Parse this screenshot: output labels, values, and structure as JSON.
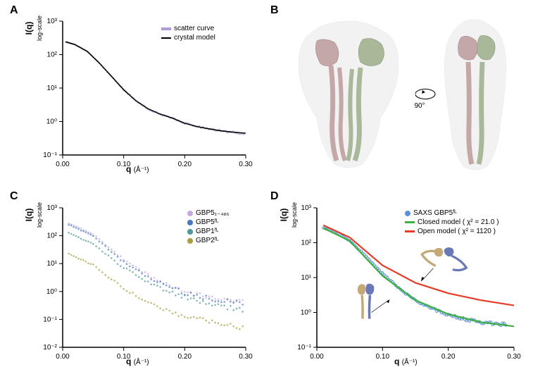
{
  "labels": {
    "A": "A",
    "B": "B",
    "C": "C",
    "D": "D"
  },
  "panelA": {
    "type": "line-scatter",
    "xlabel": "q",
    "xunit": "(Å⁻¹)",
    "ylabel": "I(q)",
    "ysub": "log-scale",
    "xlim": [
      0.0,
      0.3
    ],
    "xticks": [
      0.0,
      0.1,
      0.2,
      0.3
    ],
    "ylim": [
      -1,
      3
    ],
    "yticks": [
      "10⁻¹",
      "10⁰",
      "10¹",
      "10²",
      "10³"
    ],
    "legend": [
      {
        "label": "scatter curve",
        "color": "#b19cd9",
        "style": "scatter"
      },
      {
        "label": "crystal model",
        "color": "#000000",
        "style": "line"
      }
    ],
    "scatter_color": "#b19cd9",
    "line_color": "#000000",
    "data": [
      {
        "q": 0.005,
        "y": 2.38
      },
      {
        "q": 0.02,
        "y": 2.3
      },
      {
        "q": 0.04,
        "y": 2.1
      },
      {
        "q": 0.06,
        "y": 1.75
      },
      {
        "q": 0.08,
        "y": 1.35
      },
      {
        "q": 0.1,
        "y": 0.95
      },
      {
        "q": 0.12,
        "y": 0.62
      },
      {
        "q": 0.14,
        "y": 0.38
      },
      {
        "q": 0.16,
        "y": 0.22
      },
      {
        "q": 0.18,
        "y": 0.1
      },
      {
        "q": 0.2,
        "y": -0.05
      },
      {
        "q": 0.22,
        "y": -0.15
      },
      {
        "q": 0.24,
        "y": -0.22
      },
      {
        "q": 0.26,
        "y": -0.28
      },
      {
        "q": 0.28,
        "y": -0.32
      },
      {
        "q": 0.3,
        "y": -0.35
      }
    ],
    "background_color": "#ffffff"
  },
  "panelB": {
    "rotation_label": "90°",
    "chain_colors": [
      "#c4a8a8",
      "#a8b898"
    ],
    "envelope_color": "#e8e8e8"
  },
  "panelC": {
    "type": "multi-scatter",
    "xlabel": "q",
    "xunit": "(Å⁻¹)",
    "ylabel": "I(q)",
    "ysub": "log-scale",
    "xlim": [
      0.0,
      0.3
    ],
    "xticks": [
      0.0,
      0.1,
      0.2,
      0.3
    ],
    "ylim": [
      -2,
      3
    ],
    "yticks": [
      "10⁻²",
      "10⁻¹",
      "10⁰",
      "10¹",
      "10²",
      "10³"
    ],
    "legend": [
      {
        "label": "GBP5₁₋₄₈₆",
        "color": "#c8a8e0"
      },
      {
        "label": "GBP5ᶠᴸ",
        "color": "#4878c0"
      },
      {
        "label": "GBP1ᶠᴸ",
        "color": "#509898"
      },
      {
        "label": "GBP2ᶠᴸ",
        "color": "#a8a040"
      }
    ],
    "curves": {
      "GBP5_1_486": {
        "color": "#c8a8e0",
        "data": [
          {
            "q": 0.01,
            "y": 2.45
          },
          {
            "q": 0.05,
            "y": 2.05
          },
          {
            "q": 0.1,
            "y": 1.15
          },
          {
            "q": 0.15,
            "y": 0.45
          },
          {
            "q": 0.2,
            "y": 0.0
          },
          {
            "q": 0.25,
            "y": -0.25
          },
          {
            "q": 0.3,
            "y": -0.4
          }
        ]
      },
      "GBP5_FL": {
        "color": "#4878c0",
        "data": [
          {
            "q": 0.01,
            "y": 2.4
          },
          {
            "q": 0.05,
            "y": 2.0
          },
          {
            "q": 0.1,
            "y": 1.05
          },
          {
            "q": 0.15,
            "y": 0.4
          },
          {
            "q": 0.2,
            "y": -0.05
          },
          {
            "q": 0.25,
            "y": -0.3
          },
          {
            "q": 0.3,
            "y": -0.45
          }
        ]
      },
      "GBP1_FL": {
        "color": "#509898",
        "data": [
          {
            "q": 0.01,
            "y": 2.1
          },
          {
            "q": 0.05,
            "y": 1.7
          },
          {
            "q": 0.1,
            "y": 0.85
          },
          {
            "q": 0.15,
            "y": 0.2
          },
          {
            "q": 0.2,
            "y": -0.2
          },
          {
            "q": 0.25,
            "y": -0.5
          },
          {
            "q": 0.3,
            "y": -0.65
          }
        ]
      },
      "GBP2_FL": {
        "color": "#a8a040",
        "data": [
          {
            "q": 0.01,
            "y": 1.35
          },
          {
            "q": 0.05,
            "y": 0.95
          },
          {
            "q": 0.1,
            "y": 0.1
          },
          {
            "q": 0.15,
            "y": -0.5
          },
          {
            "q": 0.2,
            "y": -0.9
          },
          {
            "q": 0.25,
            "y": -1.1
          },
          {
            "q": 0.3,
            "y": -1.3
          }
        ]
      }
    }
  },
  "panelD": {
    "type": "line-scatter-compare",
    "xlabel": "q",
    "xunit": "(Å⁻¹)",
    "ylabel": "I(q)",
    "ysub": "log-scale",
    "xlim": [
      0.0,
      0.3
    ],
    "xticks": [
      0.0,
      0.1,
      0.2,
      0.3
    ],
    "ylim": [
      -1,
      3
    ],
    "yticks": [
      "10⁻¹",
      "10⁰",
      "10¹",
      "10²",
      "10³"
    ],
    "legend": [
      {
        "label": "SAXS GBP5ᶠᴸ",
        "color": "#5b8fd6",
        "style": "dot"
      },
      {
        "label": "Closed model ( χ² = 21.0 )",
        "color": "#3cb043",
        "style": "line"
      },
      {
        "label": "Open model ( χ² = 1120 )",
        "color": "#e63c28",
        "style": "line"
      }
    ],
    "scatter_color": "#5b8fd6",
    "closed_color": "#3cb043",
    "open_color": "#e63c28",
    "scatter_data": [
      {
        "q": 0.01,
        "y": 2.42
      },
      {
        "q": 0.03,
        "y": 2.3
      },
      {
        "q": 0.05,
        "y": 2.05
      },
      {
        "q": 0.07,
        "y": 1.7
      },
      {
        "q": 0.09,
        "y": 1.3
      },
      {
        "q": 0.11,
        "y": 0.95
      },
      {
        "q": 0.13,
        "y": 0.6
      },
      {
        "q": 0.15,
        "y": 0.35
      },
      {
        "q": 0.17,
        "y": 0.15
      },
      {
        "q": 0.19,
        "y": 0.0
      },
      {
        "q": 0.21,
        "y": -0.12
      },
      {
        "q": 0.23,
        "y": -0.22
      },
      {
        "q": 0.25,
        "y": -0.28
      },
      {
        "q": 0.27,
        "y": -0.32
      },
      {
        "q": 0.29,
        "y": -0.36
      }
    ],
    "closed_data": [
      {
        "q": 0.01,
        "y": 2.42
      },
      {
        "q": 0.05,
        "y": 2.05
      },
      {
        "q": 0.1,
        "y": 1.05
      },
      {
        "q": 0.15,
        "y": 0.35
      },
      {
        "q": 0.2,
        "y": -0.05
      },
      {
        "q": 0.25,
        "y": -0.28
      },
      {
        "q": 0.3,
        "y": -0.4
      }
    ],
    "open_data": [
      {
        "q": 0.01,
        "y": 2.5
      },
      {
        "q": 0.05,
        "y": 2.15
      },
      {
        "q": 0.1,
        "y": 1.35
      },
      {
        "q": 0.15,
        "y": 0.85
      },
      {
        "q": 0.2,
        "y": 0.55
      },
      {
        "q": 0.25,
        "y": 0.35
      },
      {
        "q": 0.3,
        "y": 0.2
      }
    ],
    "inset_colors": [
      "#c4a878",
      "#6878b8"
    ]
  }
}
